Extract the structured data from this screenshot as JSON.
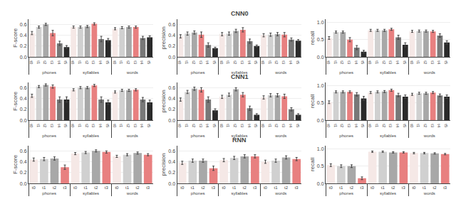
{
  "chart_data": [
    {
      "type": "bar",
      "ylabel": "F-score",
      "categories": [
        "phones",
        "syllables",
        "words"
      ],
      "series": [
        {
          "name": "t0",
          "color": "#f5e8e6",
          "values": [
            0.44,
            0.55,
            0.52
          ],
          "errors": [
            0.03,
            0.02,
            0.02
          ]
        },
        {
          "name": "t1",
          "color": "#d0d0d0",
          "values": [
            0.55,
            0.55,
            0.54
          ],
          "errors": [
            0.02,
            0.02,
            0.02
          ]
        },
        {
          "name": "t2",
          "color": "#a8a8a8",
          "values": [
            0.6,
            0.56,
            0.55
          ],
          "errors": [
            0.02,
            0.02,
            0.02
          ]
        },
        {
          "name": "t3",
          "color": "#e88080",
          "values": [
            0.44,
            0.61,
            0.55
          ],
          "errors": [
            0.05,
            0.02,
            0.02
          ]
        },
        {
          "name": "t4",
          "color": "#787878",
          "values": [
            0.25,
            0.33,
            0.35
          ],
          "errors": [
            0.04,
            0.05,
            0.03
          ]
        },
        {
          "name": "t5",
          "color": "#2a2a2a",
          "values": [
            0.18,
            0.31,
            0.36
          ],
          "errors": [
            0.03,
            0.03,
            0.03
          ]
        }
      ],
      "ylim": [
        0,
        0.7
      ],
      "yticks": [
        {
          "value": 0,
          "label": "0.0"
        },
        0.2,
        0.4,
        0.6
      ],
      "grid": true
    },
    {
      "type": "bar",
      "title": "CNN0",
      "ylabel": "precision",
      "categories": [
        "phones",
        "syllables",
        "words"
      ],
      "series": [
        {
          "name": "t0",
          "color": "#f5e8e6",
          "values": [
            0.38,
            0.42,
            0.4
          ],
          "errors": [
            0.03,
            0.03,
            0.03
          ]
        },
        {
          "name": "t1",
          "color": "#d0d0d0",
          "values": [
            0.43,
            0.43,
            0.41
          ],
          "errors": [
            0.03,
            0.03,
            0.03
          ]
        },
        {
          "name": "t2",
          "color": "#a8a8a8",
          "values": [
            0.45,
            0.48,
            0.42
          ],
          "errors": [
            0.03,
            0.03,
            0.03
          ]
        },
        {
          "name": "t3",
          "color": "#e88080",
          "values": [
            0.41,
            0.5,
            0.41
          ],
          "errors": [
            0.05,
            0.04,
            0.04
          ]
        },
        {
          "name": "t4",
          "color": "#787878",
          "values": [
            0.22,
            0.29,
            0.32
          ],
          "errors": [
            0.04,
            0.04,
            0.03
          ]
        },
        {
          "name": "t5",
          "color": "#2a2a2a",
          "values": [
            0.16,
            0.2,
            0.3
          ],
          "errors": [
            0.02,
            0.02,
            0.02
          ]
        }
      ],
      "ylim": [
        0,
        0.7
      ],
      "yticks": [
        {
          "value": 0,
          "label": "0.0"
        },
        0.2,
        0.4,
        0.6
      ],
      "grid": true
    },
    {
      "type": "bar",
      "ylabel": "recall",
      "categories": [
        "phones",
        "syllables",
        "words"
      ],
      "series": [
        {
          "name": "t0",
          "color": "#f5e8e6",
          "values": [
            0.55,
            0.77,
            0.74
          ],
          "errors": [
            0.04,
            0.03,
            0.03
          ]
        },
        {
          "name": "t1",
          "color": "#d0d0d0",
          "values": [
            0.72,
            0.77,
            0.75
          ],
          "errors": [
            0.03,
            0.03,
            0.03
          ]
        },
        {
          "name": "t2",
          "color": "#a8a8a8",
          "values": [
            0.72,
            0.77,
            0.75
          ],
          "errors": [
            0.03,
            0.03,
            0.03
          ]
        },
        {
          "name": "t3",
          "color": "#e88080",
          "values": [
            0.5,
            0.8,
            0.74
          ],
          "errors": [
            0.06,
            0.03,
            0.03
          ]
        },
        {
          "name": "t4",
          "color": "#787878",
          "values": [
            0.27,
            0.57,
            0.62
          ],
          "errors": [
            0.06,
            0.06,
            0.05
          ]
        },
        {
          "name": "t5",
          "color": "#2a2a2a",
          "values": [
            0.15,
            0.35,
            0.42
          ],
          "errors": [
            0.04,
            0.06,
            0.05
          ]
        }
      ],
      "ylim": [
        0,
        1.1
      ],
      "yticks": [
        {
          "value": 0,
          "label": "0.0"
        },
        0.5,
        {
          "value": 1.0,
          "label": "1.0"
        }
      ],
      "grid": true
    },
    {
      "type": "bar",
      "ylabel": "F-score",
      "categories": [
        "phones",
        "syllables",
        "words"
      ],
      "series": [
        {
          "name": "t0",
          "color": "#f5e8e6",
          "values": [
            0.45,
            0.56,
            0.52
          ],
          "errors": [
            0.03,
            0.02,
            0.02
          ]
        },
        {
          "name": "t1",
          "color": "#d0d0d0",
          "values": [
            0.62,
            0.6,
            0.55
          ],
          "errors": [
            0.02,
            0.02,
            0.02
          ]
        },
        {
          "name": "t2",
          "color": "#a8a8a8",
          "values": [
            0.65,
            0.6,
            0.55
          ],
          "errors": [
            0.02,
            0.02,
            0.02
          ]
        },
        {
          "name": "t3",
          "color": "#e88080",
          "values": [
            0.62,
            0.64,
            0.56
          ],
          "errors": [
            0.03,
            0.02,
            0.02
          ]
        },
        {
          "name": "t4",
          "color": "#787878",
          "values": [
            0.38,
            0.38,
            0.38
          ],
          "errors": [
            0.05,
            0.05,
            0.04
          ]
        },
        {
          "name": "t5",
          "color": "#2a2a2a",
          "values": [
            0.38,
            0.33,
            0.33
          ],
          "errors": [
            0.05,
            0.04,
            0.04
          ]
        }
      ],
      "ylim": [
        0,
        0.7
      ],
      "yticks": [
        {
          "value": 0,
          "label": "0.0"
        },
        0.2,
        0.4,
        0.6
      ],
      "grid": true
    },
    {
      "type": "bar",
      "title": "CNN1",
      "ylabel": "precision",
      "categories": [
        "phones",
        "syllables",
        "words"
      ],
      "series": [
        {
          "name": "t0",
          "color": "#f5e8e6",
          "values": [
            0.38,
            0.43,
            0.42
          ],
          "errors": [
            0.03,
            0.03,
            0.03
          ]
        },
        {
          "name": "t1",
          "color": "#d0d0d0",
          "values": [
            0.52,
            0.47,
            0.46
          ],
          "errors": [
            0.03,
            0.03,
            0.03
          ]
        },
        {
          "name": "t2",
          "color": "#a8a8a8",
          "values": [
            0.58,
            0.57,
            0.46
          ],
          "errors": [
            0.03,
            0.03,
            0.03
          ]
        },
        {
          "name": "t3",
          "color": "#e88080",
          "values": [
            0.56,
            0.47,
            0.44
          ],
          "errors": [
            0.04,
            0.04,
            0.04
          ]
        },
        {
          "name": "t4",
          "color": "#787878",
          "values": [
            0.38,
            0.22,
            0.2
          ],
          "errors": [
            0.05,
            0.04,
            0.03
          ]
        },
        {
          "name": "t5",
          "color": "#2a2a2a",
          "values": [
            0.18,
            0.1,
            0.1
          ],
          "errors": [
            0.03,
            0.02,
            0.02
          ]
        }
      ],
      "ylim": [
        0,
        0.7
      ],
      "yticks": [
        {
          "value": 0,
          "label": "0.0"
        },
        0.2,
        0.4,
        0.6
      ],
      "grid": true
    },
    {
      "type": "bar",
      "ylabel": "recall",
      "categories": [
        "phones",
        "syllables",
        "words"
      ],
      "series": [
        {
          "name": "t0",
          "color": "#f5e8e6",
          "values": [
            0.52,
            0.8,
            0.75
          ],
          "errors": [
            0.04,
            0.03,
            0.03
          ]
        },
        {
          "name": "t1",
          "color": "#d0d0d0",
          "values": [
            0.82,
            0.82,
            0.78
          ],
          "errors": [
            0.03,
            0.03,
            0.03
          ]
        },
        {
          "name": "t2",
          "color": "#a8a8a8",
          "values": [
            0.82,
            0.83,
            0.78
          ],
          "errors": [
            0.03,
            0.03,
            0.03
          ]
        },
        {
          "name": "t3",
          "color": "#e88080",
          "values": [
            0.82,
            0.87,
            0.8
          ],
          "errors": [
            0.03,
            0.03,
            0.03
          ]
        },
        {
          "name": "t4",
          "color": "#787878",
          "values": [
            0.75,
            0.73,
            0.72
          ],
          "errors": [
            0.05,
            0.05,
            0.04
          ]
        },
        {
          "name": "t5",
          "color": "#2a2a2a",
          "values": [
            0.63,
            0.68,
            0.68
          ],
          "errors": [
            0.06,
            0.05,
            0.05
          ]
        }
      ],
      "ylim": [
        0,
        1.1
      ],
      "yticks": [
        {
          "value": 0,
          "label": "0.0"
        },
        0.5,
        {
          "value": 1.0,
          "label": "1.0"
        }
      ],
      "grid": true
    },
    {
      "type": "bar",
      "ylabel": "F-score",
      "categories": [
        "phones",
        "syllables",
        "words"
      ],
      "series": [
        {
          "name": "t0",
          "color": "#f5e8e6",
          "values": [
            0.44,
            0.55,
            0.5
          ],
          "errors": [
            0.03,
            0.02,
            0.02
          ]
        },
        {
          "name": "t1",
          "color": "#d0d0d0",
          "values": [
            0.45,
            0.57,
            0.53
          ],
          "errors": [
            0.03,
            0.02,
            0.02
          ]
        },
        {
          "name": "t2",
          "color": "#a8a8a8",
          "values": [
            0.46,
            0.6,
            0.56
          ],
          "errors": [
            0.03,
            0.02,
            0.02
          ]
        },
        {
          "name": "t3",
          "color": "#e88080",
          "values": [
            0.3,
            0.58,
            0.53
          ],
          "errors": [
            0.04,
            0.02,
            0.02
          ]
        }
      ],
      "ylim": [
        0,
        0.7
      ],
      "yticks": [
        {
          "value": 0,
          "label": "0.0"
        },
        0.2,
        0.4,
        0.6
      ],
      "grid": true
    },
    {
      "type": "bar",
      "title": "RNN",
      "ylabel": "precision",
      "categories": [
        "phones",
        "syllables",
        "words"
      ],
      "series": [
        {
          "name": "t0",
          "color": "#f5e8e6",
          "values": [
            0.38,
            0.43,
            0.4
          ],
          "errors": [
            0.03,
            0.03,
            0.03
          ]
        },
        {
          "name": "t1",
          "color": "#d0d0d0",
          "values": [
            0.42,
            0.47,
            0.42
          ],
          "errors": [
            0.03,
            0.03,
            0.03
          ]
        },
        {
          "name": "t2",
          "color": "#a8a8a8",
          "values": [
            0.42,
            0.5,
            0.48
          ],
          "errors": [
            0.03,
            0.03,
            0.03
          ]
        },
        {
          "name": "t3",
          "color": "#e88080",
          "values": [
            0.28,
            0.5,
            0.45
          ],
          "errors": [
            0.04,
            0.03,
            0.03
          ]
        }
      ],
      "ylim": [
        0,
        0.7
      ],
      "yticks": [
        {
          "value": 0,
          "label": "0.0"
        },
        0.2,
        0.4,
        0.6
      ],
      "grid": true
    },
    {
      "type": "bar",
      "ylabel": "recall",
      "categories": [
        "phones",
        "syllables",
        "words"
      ],
      "series": [
        {
          "name": "t0",
          "color": "#f5e8e6",
          "values": [
            0.53,
            0.92,
            0.88
          ],
          "errors": [
            0.04,
            0.02,
            0.02
          ]
        },
        {
          "name": "t1",
          "color": "#d0d0d0",
          "values": [
            0.5,
            0.92,
            0.88
          ],
          "errors": [
            0.04,
            0.02,
            0.02
          ]
        },
        {
          "name": "t2",
          "color": "#a8a8a8",
          "values": [
            0.5,
            0.9,
            0.87
          ],
          "errors": [
            0.04,
            0.02,
            0.02
          ]
        },
        {
          "name": "t3",
          "color": "#e88080",
          "values": [
            0.15,
            0.9,
            0.85
          ],
          "errors": [
            0.04,
            0.02,
            0.02
          ]
        }
      ],
      "ylim": [
        0,
        1.1
      ],
      "yticks": [
        {
          "value": 0,
          "label": "0.0"
        },
        0.5,
        {
          "value": 1.0,
          "label": "1.0"
        }
      ],
      "grid": true
    }
  ]
}
